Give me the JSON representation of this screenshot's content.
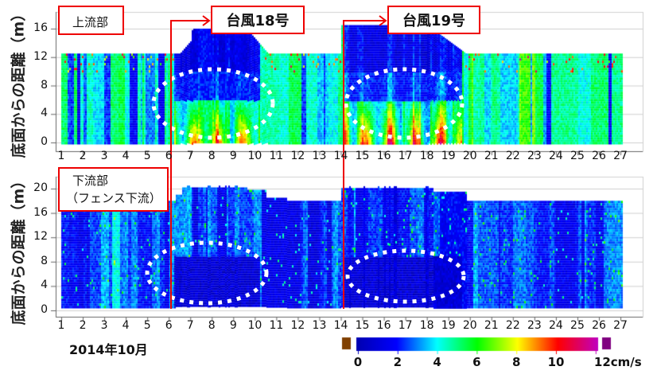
{
  "chart_data": [
    {
      "type": "heatmap",
      "panel_label": "上流部",
      "ylabel": "底面からの距離（m）",
      "y_ticks": [
        "0",
        "4",
        "8",
        "12",
        "16"
      ],
      "ylim": [
        0,
        18
      ],
      "x_ticks": [
        "1",
        "2",
        "3",
        "4",
        "5",
        "6",
        "7",
        "8",
        "9",
        "10",
        "11",
        "12",
        "13",
        "14",
        "15",
        "16",
        "17",
        "18",
        "19",
        "20",
        "21",
        "22",
        "23",
        "24",
        "25",
        "26",
        "27"
      ],
      "xlim": [
        1,
        27
      ],
      "grid": true,
      "annotations": [
        {
          "text": "台風18号",
          "day": 6.1
        },
        {
          "text": "台風19号",
          "day": 14.1
        }
      ],
      "highlight_regions": [
        {
          "day_center": 8,
          "height_center": 4
        },
        {
          "day_center": 16.9,
          "height_center": 4
        }
      ]
    },
    {
      "type": "heatmap",
      "panel_label_line1": "下流部",
      "panel_label_line2": "（フェンス下流）",
      "ylabel": "底面からの距離（m）",
      "y_ticks": [
        "0",
        "4",
        "8",
        "12",
        "16",
        "20"
      ],
      "ylim": [
        0,
        22
      ],
      "x_ticks": [
        "1",
        "2",
        "3",
        "4",
        "5",
        "6",
        "7",
        "8",
        "9",
        "10",
        "11",
        "12",
        "13",
        "14",
        "15",
        "16",
        "17",
        "18",
        "19",
        "20",
        "21",
        "22",
        "23",
        "24",
        "25",
        "26",
        "27"
      ],
      "xlim": [
        1,
        27
      ],
      "xlabel": "2014年10月",
      "grid": true,
      "highlight_regions": [
        {
          "day_center": 8,
          "height_center": 6
        },
        {
          "day_center": 17.2,
          "height_center": 5
        }
      ]
    }
  ],
  "colorbar": {
    "labels": [
      "0",
      "2",
      "4",
      "6",
      "8",
      "10",
      "12cm/s"
    ],
    "range": [
      0,
      12
    ],
    "colors": [
      "#0000b0",
      "#0000ff",
      "#00ffff",
      "#00ff00",
      "#ffff00",
      "#ff0000",
      "#c000c0"
    ],
    "under_color": "#804000",
    "over_color": "#800080"
  },
  "annotation_color": "#ee0000"
}
